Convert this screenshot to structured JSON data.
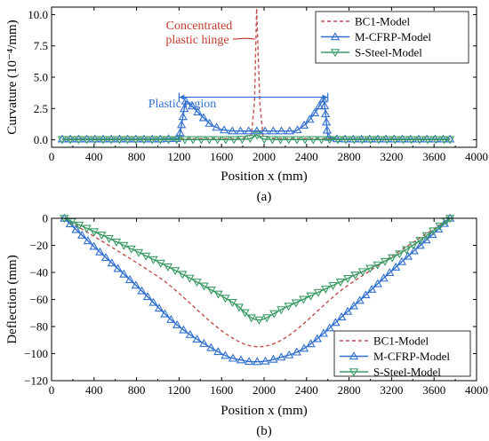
{
  "colors": {
    "bc1": "#c0504d",
    "mcfrp": "#2f6fcf",
    "steel": "#3a9a64",
    "ann_red": "#c0392b",
    "ann_blue": "#2f6fcf"
  },
  "chart_data": [
    {
      "type": "line",
      "panel_label": "(a)",
      "xlabel": "Position x (mm)",
      "ylabel": "Curvature (10⁻⁴/mm)",
      "xlim": [
        0,
        4000
      ],
      "ylim": [
        -0.6,
        10.6
      ],
      "xticks": [
        0,
        400,
        800,
        1200,
        1600,
        2000,
        2400,
        2800,
        3200,
        3600,
        4000
      ],
      "xtick_labels": [
        "0",
        "400",
        "800",
        "1200",
        "1600",
        "2000",
        "2400",
        "2800",
        "3200",
        "3600",
        "4000"
      ],
      "yticks": [
        0,
        2.5,
        5,
        7.5,
        10
      ],
      "ytick_labels": [
        "0.0",
        "2.5",
        "5.0",
        "7.5",
        "10.0"
      ],
      "legend_position": "top-right",
      "annotations": {
        "hinge_line1": "Concentrated",
        "hinge_line2": "plastic hinge",
        "plastic_region": "Plastic region"
      },
      "series": [
        {
          "name": "BC1-Model",
          "style": "dashed",
          "x": [
            100,
            1800,
            1880,
            1910,
            1930,
            1960,
            1990,
            2100,
            3750
          ],
          "y": [
            0.05,
            0.1,
            0.4,
            3.0,
            10.5,
            3.0,
            0.3,
            0.1,
            0.05
          ]
        },
        {
          "name": "M-CFRP-Model",
          "style": "triangle-up",
          "x": [
            100,
            1000,
            1200,
            1240,
            1260,
            1300,
            1400,
            1500,
            1600,
            1700,
            2000,
            2300,
            2400,
            2500,
            2560,
            2580,
            2600,
            2700,
            3750
          ],
          "y": [
            0.05,
            0.05,
            0.1,
            2.0,
            3.1,
            2.9,
            2.0,
            1.2,
            0.8,
            0.7,
            0.7,
            0.7,
            1.3,
            2.4,
            3.3,
            2.0,
            0.2,
            0.05,
            0.05
          ]
        },
        {
          "name": "S-Steel-Model",
          "style": "triangle-down",
          "x": [
            100,
            1700,
            1850,
            1900,
            1930,
            1960,
            2000,
            2100,
            3750
          ],
          "y": [
            0.02,
            0.02,
            0.05,
            0.2,
            0.4,
            0.2,
            0.05,
            0.02,
            0.02
          ]
        }
      ]
    },
    {
      "type": "line",
      "panel_label": "(b)",
      "xlabel": "Position x (mm)",
      "ylabel": "Deflection (mm)",
      "xlim": [
        0,
        4000
      ],
      "ylim": [
        -120,
        0
      ],
      "xticks": [
        0,
        400,
        800,
        1200,
        1600,
        2000,
        2400,
        2800,
        3200,
        3600,
        4000
      ],
      "xtick_labels": [
        "0",
        "400",
        "800",
        "1200",
        "1600",
        "2000",
        "2400",
        "2800",
        "3200",
        "3600",
        "4000"
      ],
      "yticks": [
        0,
        -20,
        -40,
        -60,
        -80,
        -100,
        -120
      ],
      "ytick_labels": [
        "0",
        "−20",
        "−40",
        "−60",
        "−80",
        "−100",
        "−120"
      ],
      "legend_position": "bottom-right",
      "series": [
        {
          "name": "BC1-Model",
          "style": "dashed",
          "x": [
            120,
            1000,
            1935,
            2800,
            3750
          ],
          "y": [
            0,
            -43,
            -95,
            -49,
            0
          ]
        },
        {
          "name": "M-CFRP-Model",
          "style": "triangle-up",
          "x": [
            120,
            400,
            800,
            1200,
            1600,
            1800,
            1935,
            2100,
            2400,
            2800,
            3200,
            3600,
            3750
          ],
          "y": [
            0,
            -21,
            -50,
            -80,
            -100,
            -105,
            -106,
            -104,
            -95,
            -68,
            -39,
            -11,
            0
          ]
        },
        {
          "name": "S-Steel-Model",
          "style": "triangle-down",
          "x": [
            120,
            600,
            1200,
            1700,
            1935,
            2200,
            2800,
            3300,
            3750
          ],
          "y": [
            0,
            -17,
            -40,
            -62,
            -75,
            -66,
            -44,
            -25,
            0
          ]
        }
      ]
    }
  ]
}
